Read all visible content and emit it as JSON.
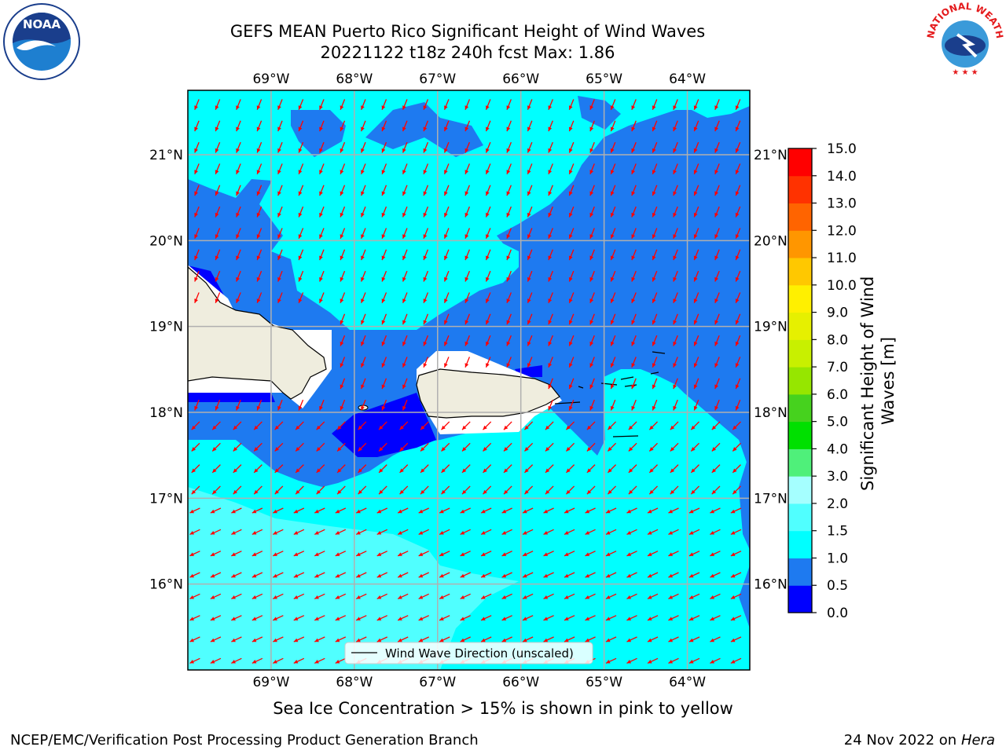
{
  "header": {
    "title": "GEFS MEAN Puerto Rico Significant Height of Wind Waves",
    "subtitle": "20221122 t18z 240h fcst   Max: 1.86"
  },
  "map": {
    "lon_range": [
      -70.0,
      -63.25
    ],
    "lat_range": [
      15.0,
      21.75
    ],
    "lon_ticks": [
      "69°W",
      "68°W",
      "67°W",
      "66°W",
      "65°W",
      "64°W"
    ],
    "lat_ticks": [
      "21°N",
      "20°N",
      "19°N",
      "18°N",
      "17°N",
      "16°N"
    ],
    "grid": true,
    "legend_label": "Wind Wave Direction (unscaled)",
    "legend_position": "bottom-center",
    "arrow_color": "#ff0000",
    "land_color": "#efedde",
    "max_value": 1.86
  },
  "colorbar": {
    "label": "Significant Height of Wind Waves [m]",
    "tick_labels": [
      "0.0",
      "0.5",
      "1.0",
      "1.5",
      "2.0",
      "3.0",
      "4.0",
      "5.0",
      "6.0",
      "7.0",
      "8.0",
      "9.0",
      "10.0",
      "11.0",
      "12.0",
      "13.0",
      "14.0",
      "15.0"
    ],
    "colors": [
      "#0000ff",
      "#1e7af0",
      "#00ffff",
      "#50ffff",
      "#a5ffff",
      "#4ff07a",
      "#00e000",
      "#46d21e",
      "#96e600",
      "#c8f000",
      "#e6f000",
      "#fff000",
      "#ffc800",
      "#ff9600",
      "#ff6400",
      "#ff3200",
      "#ff0000"
    ]
  },
  "footer": {
    "note": "Sea Ice Concentration > 15% is shown in pink to yellow",
    "credit_left": "NCEP/EMC/Verification Post Processing Product Generation Branch",
    "date_text": "24 Nov 2022 on",
    "host": "Hera"
  },
  "logos": {
    "noaa": "NOAA",
    "nws": "NATIONAL WEATHER SERVICE"
  }
}
